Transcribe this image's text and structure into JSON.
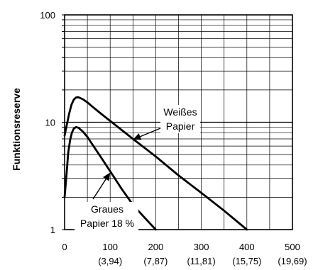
{
  "chart_data": {
    "type": "line",
    "title": "",
    "xlabel": "",
    "ylabel": "Funktionsreserve",
    "xlim": [
      0,
      500
    ],
    "ylim": [
      1,
      100
    ],
    "yscale": "log",
    "grid": true,
    "x_ticks": [
      {
        "value": 0,
        "label": "0",
        "sublabel": ""
      },
      {
        "value": 100,
        "label": "100",
        "sublabel": "(3,94)"
      },
      {
        "value": 200,
        "label": "200",
        "sublabel": "(7,87)"
      },
      {
        "value": 300,
        "label": "300",
        "sublabel": "(11,81)"
      },
      {
        "value": 400,
        "label": "400",
        "sublabel": "(15,75)"
      },
      {
        "value": 500,
        "label": "500",
        "sublabel": "(19,69)"
      }
    ],
    "y_ticks": [
      {
        "value": 1,
        "label": "1"
      },
      {
        "value": 10,
        "label": "10"
      },
      {
        "value": 100,
        "label": "100"
      }
    ],
    "series": [
      {
        "name": "Weißes Papier",
        "color": "#000000",
        "x": [
          0,
          5,
          10,
          15,
          20,
          25,
          30,
          40,
          50,
          60,
          80,
          100,
          150,
          200,
          250,
          300,
          350,
          400
        ],
        "y": [
          7.5,
          9.5,
          12,
          14.5,
          16.2,
          17,
          17.1,
          16.4,
          15.3,
          14.1,
          12,
          10.3,
          7,
          4.8,
          3.2,
          2.2,
          1.5,
          1.0
        ]
      },
      {
        "name": "Graues Papier 18 %",
        "color": "#000000",
        "x": [
          0,
          4,
          8,
          12,
          16,
          20,
          25,
          30,
          40,
          50,
          60,
          80,
          100,
          125,
          150,
          175,
          200
        ],
        "y": [
          2.0,
          3.2,
          5.2,
          6.8,
          8.0,
          8.7,
          9.0,
          8.9,
          8.2,
          7.3,
          6.3,
          4.7,
          3.5,
          2.4,
          1.7,
          1.3,
          1.0
        ]
      }
    ],
    "annotations": [
      {
        "lines": [
          "Weißes",
          "Papier"
        ],
        "arrow_to": {
          "x": 150,
          "y": 6.9
        }
      },
      {
        "lines": [
          "Graues",
          "Papier 18 %"
        ],
        "arrow_to": {
          "x": 100,
          "y": 3.4
        }
      }
    ]
  }
}
